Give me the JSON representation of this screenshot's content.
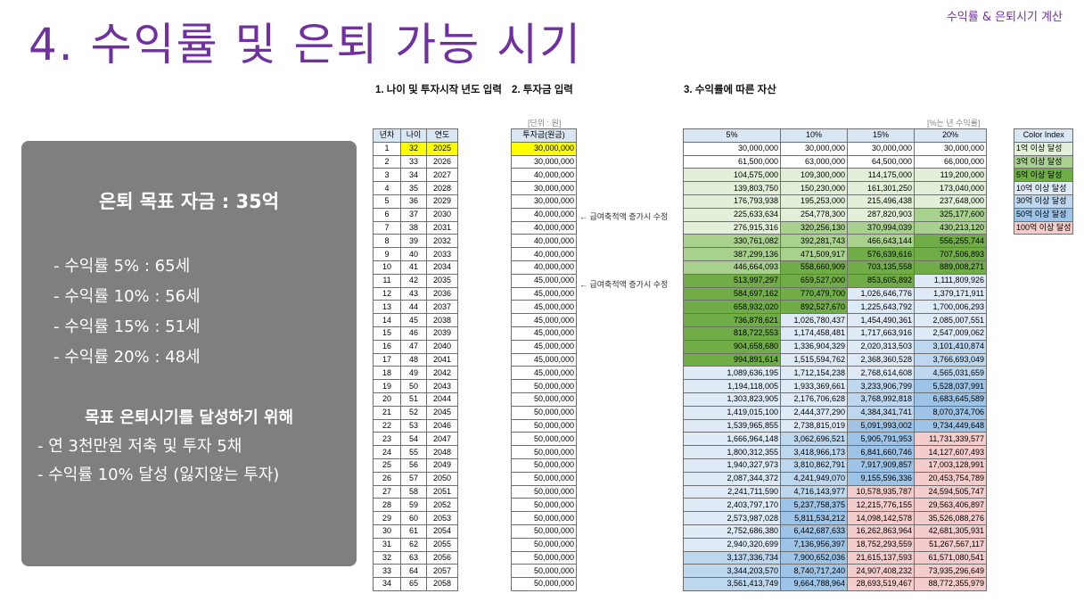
{
  "header_right": "수익률 & 은퇴시기 계산",
  "title": "4. 수익률 및 은퇴 가능 시기",
  "sections": {
    "s1": "1. 나이 및 투자시작 년도 입력",
    "s2": "2. 투자금 입력",
    "s3": "3. 수익률에 따른 자산"
  },
  "unit_note": "[단위 : 원]",
  "rate_note": "[%는 년 수익률]",
  "panel": {
    "goal": "은퇴 목표 자금 : 35억",
    "rates": [
      "- 수익률   5% : 65세",
      "- 수익률 10% : 56세",
      "- 수익률 15% : 51세",
      "- 수익률 20% : 48세"
    ],
    "subtitle": "목표 은퇴시기를 달성하기 위해",
    "actions": [
      "- 연 3천만원 저축 및 투자 5채",
      "- 수익률 10% 달성 (잃지않는 투자)"
    ]
  },
  "left_headers": [
    "년차",
    "나이",
    "연도"
  ],
  "invest_header": "투자금(원금)",
  "asset_headers": [
    "5%",
    "10%",
    "15%",
    "20%"
  ],
  "annotations": {
    "a1": "← 급여축적액 증가시 수정",
    "a2": "← 급여축적액 증가시 수정"
  },
  "legend": {
    "title": "Color Index",
    "items": [
      "1억 이상 달성",
      "3억 이상 달성",
      "5억 이상 달성",
      "10억 이상 달성",
      "30억 이상 달성",
      "50억 이상 달성",
      "100억 이상 달성"
    ]
  },
  "colors": {
    "title": "#7030a0",
    "panel": "#7f7f7f",
    "highlight_yellow": "#ffff00",
    "tier_1": "#e2f0d9",
    "tier_3": "#a9d18e",
    "tier_5": "#70ad47",
    "tier_10": "#deebf7",
    "tier_30": "#bdd7ee",
    "tier_50": "#9dc3e6",
    "tier_100": "#f4cccc"
  },
  "rows": [
    {
      "n": "1",
      "age": "32",
      "year": "2025",
      "inv": "30,000,000",
      "v": [
        "30,000,000",
        "30,000,000",
        "30,000,000",
        "30,000,000"
      ]
    },
    {
      "n": "2",
      "age": "33",
      "year": "2026",
      "inv": "30,000,000",
      "v": [
        "61,500,000",
        "63,000,000",
        "64,500,000",
        "66,000,000"
      ]
    },
    {
      "n": "3",
      "age": "34",
      "year": "2027",
      "inv": "40,000,000",
      "v": [
        "104,575,000",
        "109,300,000",
        "114,175,000",
        "119,200,000"
      ]
    },
    {
      "n": "4",
      "age": "35",
      "year": "2028",
      "inv": "30,000,000",
      "v": [
        "139,803,750",
        "150,230,000",
        "161,301,250",
        "173,040,000"
      ]
    },
    {
      "n": "5",
      "age": "36",
      "year": "2029",
      "inv": "30,000,000",
      "v": [
        "176,793,938",
        "195,253,000",
        "215,496,438",
        "237,648,000"
      ]
    },
    {
      "n": "6",
      "age": "37",
      "year": "2030",
      "inv": "40,000,000",
      "v": [
        "225,633,634",
        "254,778,300",
        "287,820,903",
        "325,177,600"
      ]
    },
    {
      "n": "7",
      "age": "38",
      "year": "2031",
      "inv": "40,000,000",
      "v": [
        "276,915,316",
        "320,256,130",
        "370,994,039",
        "430,213,120"
      ]
    },
    {
      "n": "8",
      "age": "39",
      "year": "2032",
      "inv": "40,000,000",
      "v": [
        "330,761,082",
        "392,281,743",
        "466,643,144",
        "556,255,744"
      ]
    },
    {
      "n": "9",
      "age": "40",
      "year": "2033",
      "inv": "40,000,000",
      "v": [
        "387,299,136",
        "471,509,917",
        "576,639,616",
        "707,506,893"
      ]
    },
    {
      "n": "10",
      "age": "41",
      "year": "2034",
      "inv": "40,000,000",
      "v": [
        "446,664,093",
        "558,660,909",
        "703,135,558",
        "889,008,271"
      ]
    },
    {
      "n": "11",
      "age": "42",
      "year": "2035",
      "inv": "45,000,000",
      "v": [
        "513,997,297",
        "659,527,000",
        "853,605,892",
        "1,111,809,926"
      ]
    },
    {
      "n": "12",
      "age": "43",
      "year": "2036",
      "inv": "45,000,000",
      "v": [
        "584,697,162",
        "770,479,700",
        "1,026,646,776",
        "1,379,171,911"
      ]
    },
    {
      "n": "13",
      "age": "44",
      "year": "2037",
      "inv": "45,000,000",
      "v": [
        "658,932,020",
        "892,527,670",
        "1,225,643,792",
        "1,700,006,293"
      ]
    },
    {
      "n": "14",
      "age": "45",
      "year": "2038",
      "inv": "45,000,000",
      "v": [
        "736,878,621",
        "1,026,780,437",
        "1,454,490,361",
        "2,085,007,551"
      ]
    },
    {
      "n": "15",
      "age": "46",
      "year": "2039",
      "inv": "45,000,000",
      "v": [
        "818,722,553",
        "1,174,458,481",
        "1,717,663,916",
        "2,547,009,062"
      ]
    },
    {
      "n": "16",
      "age": "47",
      "year": "2040",
      "inv": "45,000,000",
      "v": [
        "904,658,680",
        "1,336,904,329",
        "2,020,313,503",
        "3,101,410,874"
      ]
    },
    {
      "n": "17",
      "age": "48",
      "year": "2041",
      "inv": "45,000,000",
      "v": [
        "994,891,614",
        "1,515,594,762",
        "2,368,360,528",
        "3,766,693,049"
      ]
    },
    {
      "n": "18",
      "age": "49",
      "year": "2042",
      "inv": "45,000,000",
      "v": [
        "1,089,636,195",
        "1,712,154,238",
        "2,768,614,608",
        "4,565,031,659"
      ]
    },
    {
      "n": "19",
      "age": "50",
      "year": "2043",
      "inv": "50,000,000",
      "v": [
        "1,194,118,005",
        "1,933,369,661",
        "3,233,906,799",
        "5,528,037,991"
      ]
    },
    {
      "n": "20",
      "age": "51",
      "year": "2044",
      "inv": "50,000,000",
      "v": [
        "1,303,823,905",
        "2,176,706,628",
        "3,768,992,818",
        "6,683,645,589"
      ]
    },
    {
      "n": "21",
      "age": "52",
      "year": "2045",
      "inv": "50,000,000",
      "v": [
        "1,419,015,100",
        "2,444,377,290",
        "4,384,341,741",
        "8,070,374,706"
      ]
    },
    {
      "n": "22",
      "age": "53",
      "year": "2046",
      "inv": "50,000,000",
      "v": [
        "1,539,965,855",
        "2,738,815,019",
        "5,091,993,002",
        "9,734,449,648"
      ]
    },
    {
      "n": "23",
      "age": "54",
      "year": "2047",
      "inv": "50,000,000",
      "v": [
        "1,666,964,148",
        "3,062,696,521",
        "5,905,791,953",
        "11,731,339,577"
      ]
    },
    {
      "n": "24",
      "age": "55",
      "year": "2048",
      "inv": "50,000,000",
      "v": [
        "1,800,312,355",
        "3,418,966,173",
        "6,841,660,746",
        "14,127,607,493"
      ]
    },
    {
      "n": "25",
      "age": "56",
      "year": "2049",
      "inv": "50,000,000",
      "v": [
        "1,940,327,973",
        "3,810,862,791",
        "7,917,909,857",
        "17,003,128,991"
      ]
    },
    {
      "n": "26",
      "age": "57",
      "year": "2050",
      "inv": "50,000,000",
      "v": [
        "2,087,344,372",
        "4,241,949,070",
        "9,155,596,336",
        "20,453,754,789"
      ]
    },
    {
      "n": "27",
      "age": "58",
      "year": "2051",
      "inv": "50,000,000",
      "v": [
        "2,241,711,590",
        "4,716,143,977",
        "10,578,935,787",
        "24,594,505,747"
      ]
    },
    {
      "n": "28",
      "age": "59",
      "year": "2052",
      "inv": "50,000,000",
      "v": [
        "2,403,797,170",
        "5,237,758,375",
        "12,215,776,155",
        "29,563,406,897"
      ]
    },
    {
      "n": "29",
      "age": "60",
      "year": "2053",
      "inv": "50,000,000",
      "v": [
        "2,573,987,028",
        "5,811,534,212",
        "14,098,142,578",
        "35,526,088,276"
      ]
    },
    {
      "n": "30",
      "age": "61",
      "year": "2054",
      "inv": "50,000,000",
      "v": [
        "2,752,686,380",
        "6,442,687,633",
        "16,262,863,964",
        "42,681,305,931"
      ]
    },
    {
      "n": "31",
      "age": "62",
      "year": "2055",
      "inv": "50,000,000",
      "v": [
        "2,940,320,699",
        "7,136,956,397",
        "18,752,293,559",
        "51,267,567,117"
      ]
    },
    {
      "n": "32",
      "age": "63",
      "year": "2056",
      "inv": "50,000,000",
      "v": [
        "3,137,336,734",
        "7,900,652,036",
        "21,615,137,593",
        "61,571,080,541"
      ]
    },
    {
      "n": "33",
      "age": "64",
      "year": "2057",
      "inv": "50,000,000",
      "v": [
        "3,344,203,570",
        "8,740,717,240",
        "24,907,408,232",
        "73,935,296,649"
      ]
    },
    {
      "n": "34",
      "age": "65",
      "year": "2058",
      "inv": "50,000,000",
      "v": [
        "3,561,413,749",
        "9,664,788,964",
        "28,693,519,467",
        "88,772,355,979"
      ]
    }
  ]
}
